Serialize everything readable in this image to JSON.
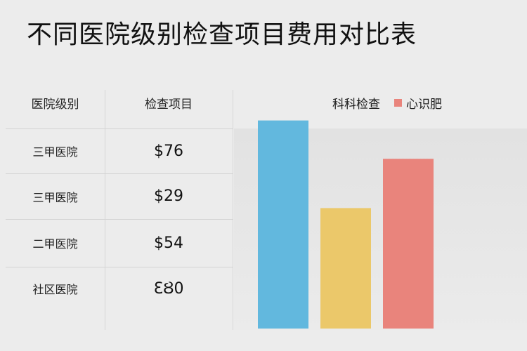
{
  "title": "不同医院级别检查项目费用对比表",
  "table": {
    "headers": [
      "医院级别",
      "检查项目"
    ],
    "rows": [
      {
        "level": "三甲医院",
        "price": "$76"
      },
      {
        "level": "三甲医院",
        "price": "$29"
      },
      {
        "level": "二甲医院",
        "price": "$54"
      },
      {
        "level": "社区医院",
        "price": "ƐȢ0"
      }
    ]
  },
  "chart_data": {
    "type": "bar",
    "categories": [
      "",
      "",
      ""
    ],
    "values": [
      76,
      44,
      62
    ],
    "colors": [
      "#62b8de",
      "#ebc86a",
      "#e9847c"
    ],
    "ylim": [
      0,
      80
    ],
    "legend": [
      {
        "label": "科科检查",
        "color": ""
      },
      {
        "label": "心识肥",
        "color": "#e9847c"
      }
    ],
    "legend_position": "top-right",
    "grid": false
  }
}
